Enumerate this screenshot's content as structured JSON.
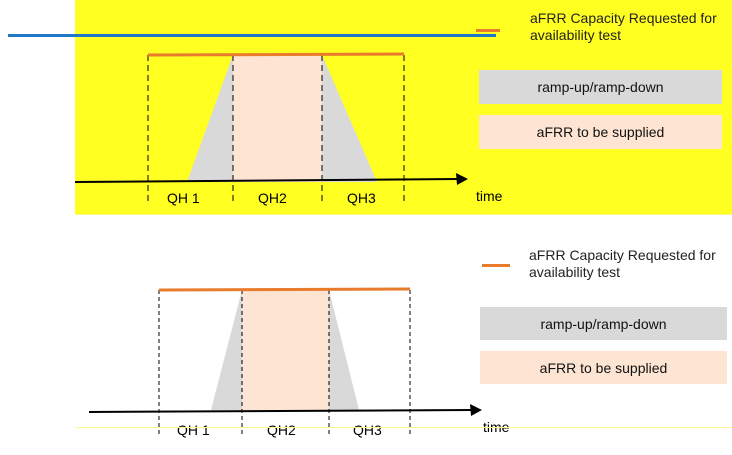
{
  "panels": [
    {
      "id": "top",
      "background": "#ffff22",
      "legend": {
        "capacity_label": "aFRR Capacity Requested for availability test",
        "ramp_label": "ramp-up/ramp-down",
        "supplied_label": "aFRR to be supplied"
      },
      "axis": {
        "time_label": "time",
        "quarter_hours": [
          "QH 1",
          "QH2",
          "QH3"
        ]
      }
    },
    {
      "id": "bottom",
      "background": "#ffffff",
      "legend": {
        "capacity_label": "aFRR Capacity Requested for availability test",
        "ramp_label": "ramp-up/ramp-down",
        "supplied_label": "aFRR to be supplied"
      },
      "axis": {
        "time_label": "time",
        "quarter_hours": [
          "QH 1",
          "QH2",
          "QH3"
        ]
      }
    }
  ],
  "colors": {
    "capacity_line": "#e87b2c",
    "ramp_fill": "#d9d9d9",
    "supplied_fill": "#fde4d3",
    "overlay_line": "#1f77c8"
  }
}
